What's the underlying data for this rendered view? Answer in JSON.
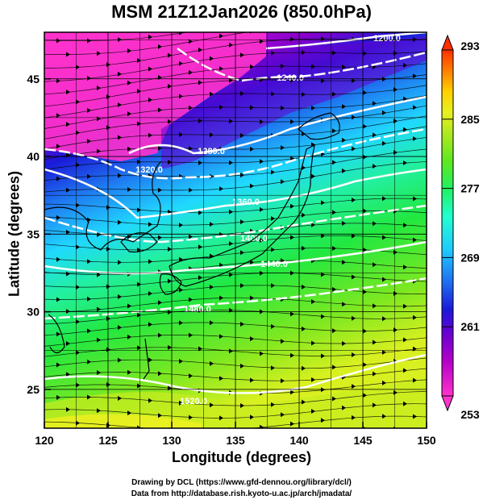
{
  "title": "MSM 21Z12Jan2026 (850.0hPa)",
  "x_axis": {
    "label": "Longitude (degrees)",
    "range": [
      120,
      150
    ],
    "ticks": [
      "120",
      "125",
      "130",
      "135",
      "140",
      "145",
      "150"
    ]
  },
  "y_axis": {
    "label": "Latitude  (degrees)",
    "range": [
      22.5,
      48
    ],
    "ticks": [
      "25",
      "30",
      "35",
      "40",
      "45"
    ]
  },
  "colorbar": {
    "range": [
      253,
      293
    ],
    "ticks": [
      "253",
      "261",
      "269",
      "277",
      "285",
      "293"
    ],
    "colors": [
      "#ff33cc",
      "#b400c8",
      "#6a00d0",
      "#1a1ad8",
      "#1f6ff0",
      "#20c8ff",
      "#22ffd0",
      "#22f060",
      "#60e820",
      "#b0e820",
      "#e8f020",
      "#ffd000",
      "#ff8000",
      "#ff3000"
    ]
  },
  "contours": [
    {
      "label": "1200.0"
    },
    {
      "label": "1240.0"
    },
    {
      "label": "1280.0"
    },
    {
      "label": "1320.0"
    },
    {
      "label": "1360.0"
    },
    {
      "label": "1400.0"
    },
    {
      "label": "1440.0"
    },
    {
      "label": "1480.0"
    },
    {
      "label": "1520.0"
    }
  ],
  "credits": [
    "Drawing by DCL (https://www.gfd-dennou.org/library/dcl/)",
    "Data from http://database.rish.kyoto-u.ac.jp/arch/jmadata/"
  ]
}
